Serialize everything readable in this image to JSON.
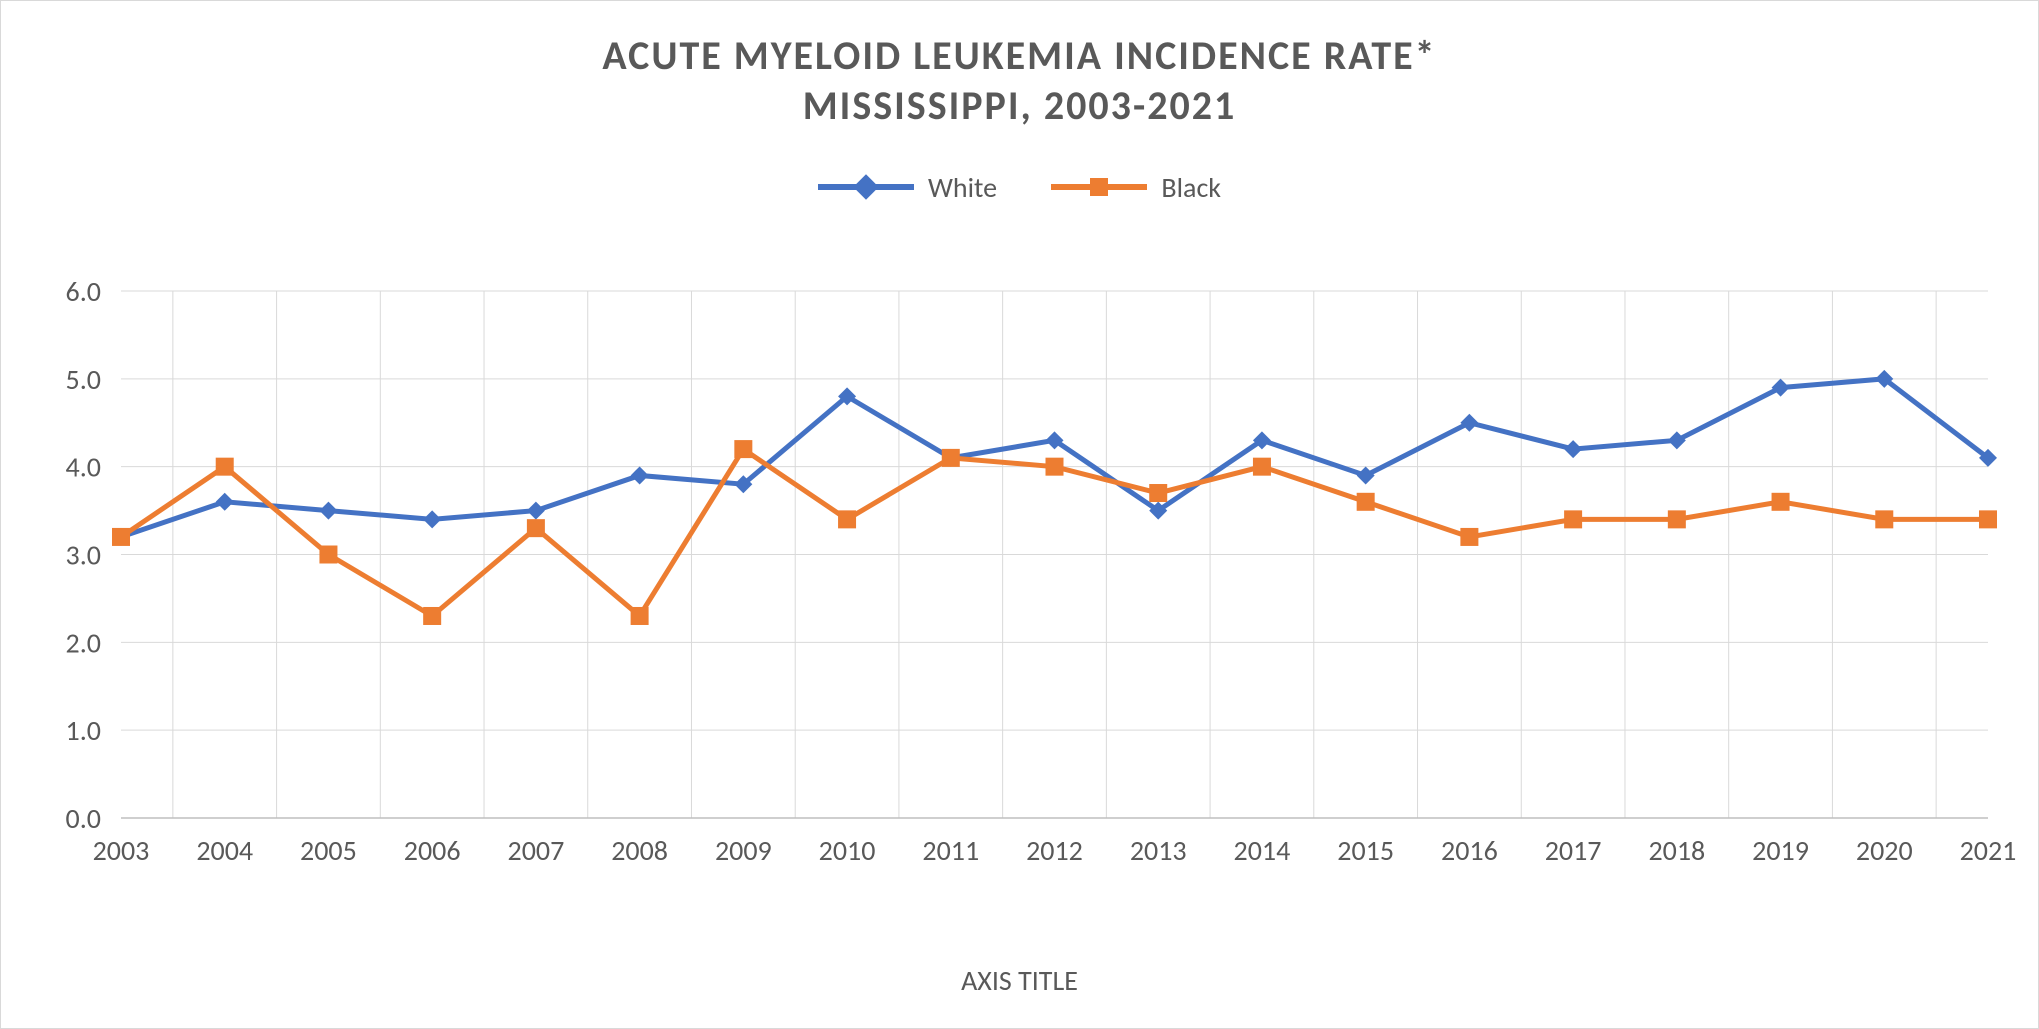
{
  "chart": {
    "type": "line",
    "title_line1": "ACUTE MYELOID LEUKEMIA INCIDENCE RATE*",
    "title_line2": "MISSISSIPPI, 2003-2021",
    "title_color": "#595959",
    "title_fontsize": 40,
    "background_color": "#ffffff",
    "border_color": "#d9d9d9",
    "grid_color": "#d9d9d9",
    "years": [
      2003,
      2004,
      2005,
      2006,
      2007,
      2008,
      2009,
      2010,
      2011,
      2012,
      2013,
      2014,
      2015,
      2016,
      2017,
      2018,
      2019,
      2020,
      2021
    ],
    "ylim": [
      0.0,
      6.0
    ],
    "ytick_step": 1.0,
    "yticks_labels": [
      "0.0",
      "1.0",
      "2.0",
      "3.0",
      "4.0",
      "5.0",
      "6.0"
    ],
    "x_axis_title": "AXIS TITLE",
    "axis_label_fontsize": 28,
    "axis_tick_fontsize": 28,
    "axis_text_color": "#595959",
    "line_width": 5,
    "marker_size": 18,
    "series": [
      {
        "name": "White",
        "color": "#4472c4",
        "marker": "diamond",
        "values": [
          3.2,
          3.6,
          3.5,
          3.4,
          3.5,
          3.9,
          3.8,
          4.8,
          4.1,
          4.3,
          3.5,
          4.3,
          3.9,
          4.5,
          4.2,
          4.3,
          4.9,
          5.0,
          4.1
        ]
      },
      {
        "name": "Black",
        "color": "#ed7d31",
        "marker": "square",
        "values": [
          3.2,
          4.0,
          3.0,
          2.3,
          3.3,
          2.3,
          4.2,
          3.4,
          4.1,
          4.0,
          3.7,
          4.0,
          3.6,
          3.2,
          3.4,
          3.4,
          3.6,
          3.4,
          3.4
        ]
      }
    ]
  }
}
